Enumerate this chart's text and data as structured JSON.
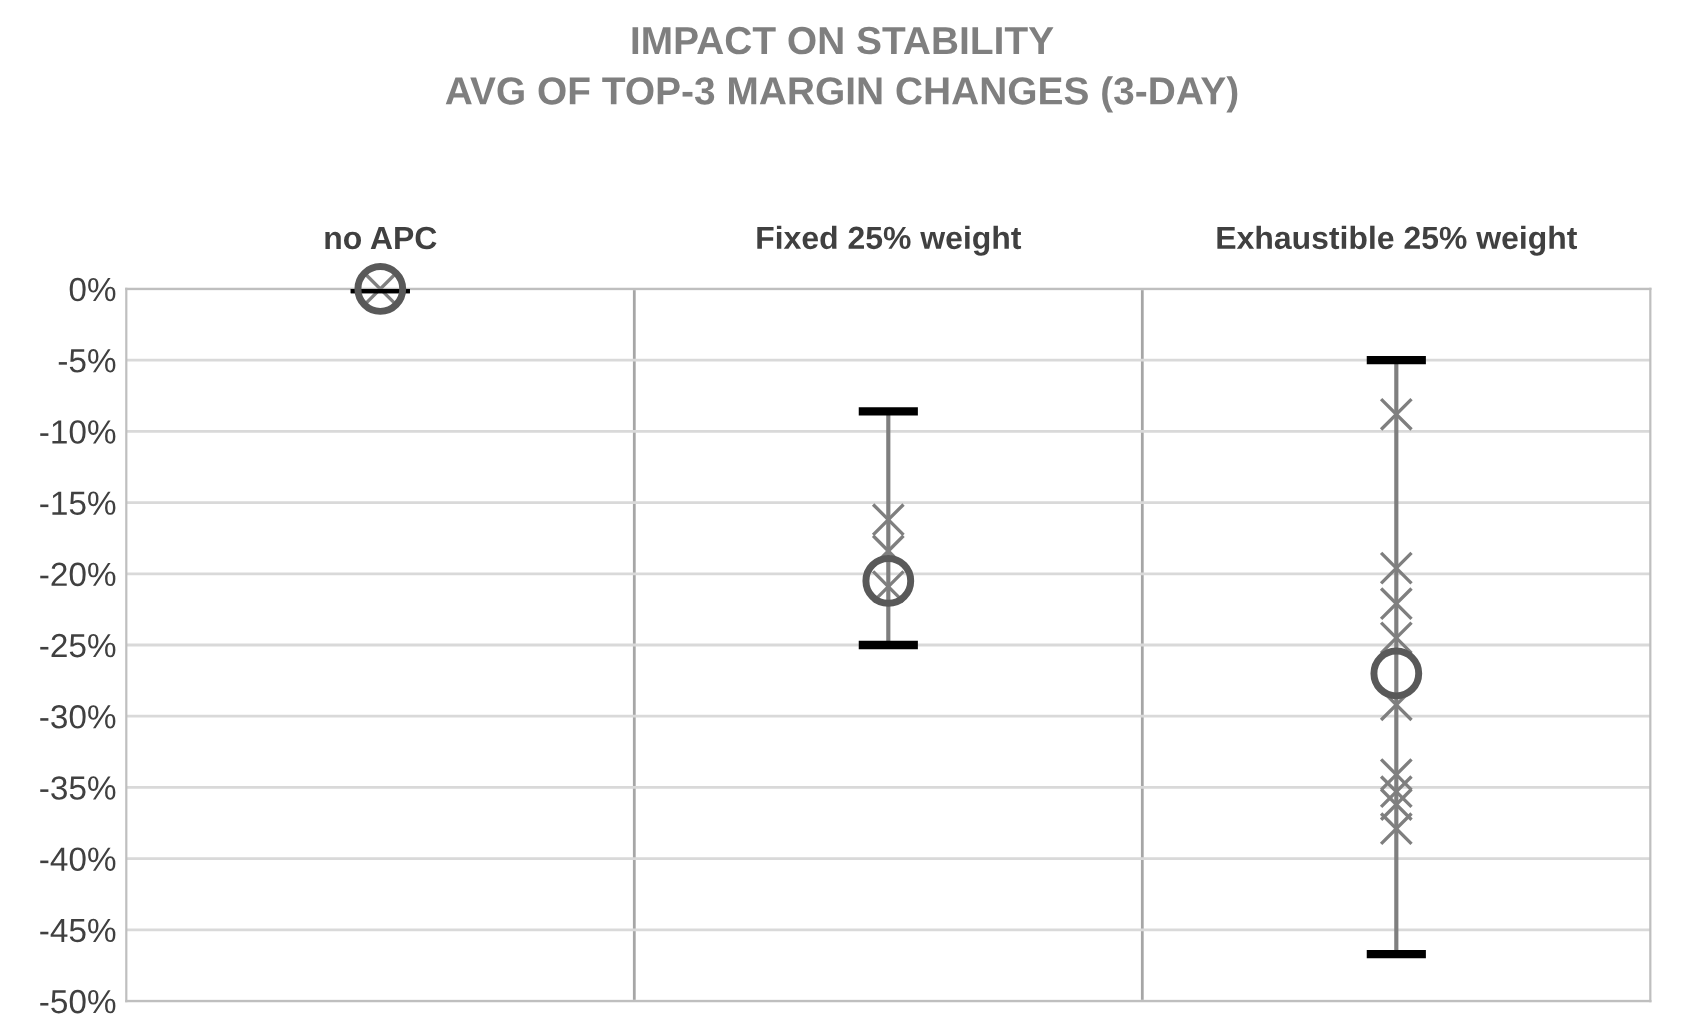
{
  "chart_data": {
    "type": "scatter",
    "title": "IMPACT ON STABILITY\nAVG OF TOP-3 MARGIN CHANGES (3-DAY)",
    "categories": [
      "no APC",
      "Fixed 25% weight",
      "Exhaustible 25% weight"
    ],
    "series": [
      {
        "marker": "cross",
        "color": "#7f7f7f",
        "x": [
          "no APC",
          "Fixed 25% weight",
          "Fixed 25% weight",
          "Fixed 25% weight",
          "Exhaustible 25% weight",
          "Exhaustible 25% weight",
          "Exhaustible 25% weight",
          "Exhaustible 25% weight",
          "Exhaustible 25% weight",
          "Exhaustible 25% weight",
          "Exhaustible 25% weight",
          "Exhaustible 25% weight",
          "Exhaustible 25% weight"
        ],
        "values": [
          0,
          -16.2,
          -18.4,
          -20.9,
          -8.8,
          -19.6,
          -22.1,
          -24.5,
          -29.2,
          -34.1,
          -35.3,
          -36.2,
          -37.9
        ]
      },
      {
        "marker": "circle",
        "color": "#595959",
        "values": [
          0,
          -20.5,
          -27.0
        ],
        "errors": [
          [
            0,
            0
          ],
          [
            -25.0,
            -8.6
          ],
          [
            -46.7,
            -5.0
          ]
        ]
      }
    ],
    "ylim": [
      -50,
      0
    ],
    "yticks": [
      {
        "value": 0,
        "label": "0%"
      },
      {
        "value": -5,
        "label": "-5%"
      },
      {
        "value": -10,
        "label": "-10%"
      },
      {
        "value": -15,
        "label": "-15%"
      },
      {
        "value": -20,
        "label": "-20%"
      },
      {
        "value": -25,
        "label": "-25%"
      },
      {
        "value": -30,
        "label": "-30%"
      },
      {
        "value": -35,
        "label": "-35%"
      },
      {
        "value": -40,
        "label": "-40%"
      },
      {
        "value": -45,
        "label": "-45%"
      },
      {
        "value": -50,
        "label": "-50%"
      }
    ],
    "grid": "y",
    "legend": false
  }
}
